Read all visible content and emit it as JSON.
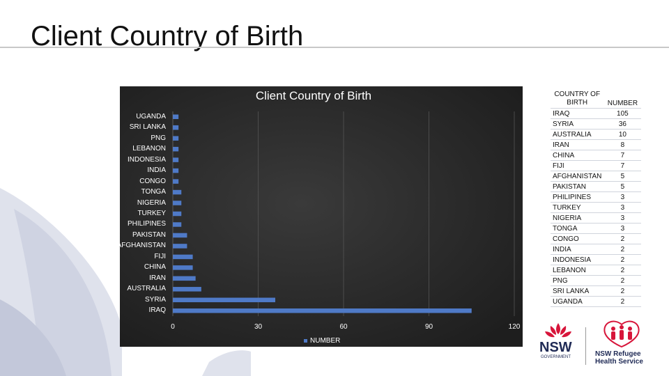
{
  "slide": {
    "title": "Client Country of Birth"
  },
  "chart_data": {
    "type": "bar",
    "orientation": "horizontal",
    "title": "Client Country of Birth",
    "categories": [
      "UGANDA",
      "SRI LANKA",
      "PNG",
      "LEBANON",
      "INDONESIA",
      "INDIA",
      "CONGO",
      "TONGA",
      "NIGERIA",
      "TURKEY",
      "PHILIPINES",
      "PAKISTAN",
      "AFGHANISTAN",
      "FIJI",
      "CHINA",
      "IRAN",
      "AUSTRALIA",
      "SYRIA",
      "IRAQ"
    ],
    "series": [
      {
        "name": "NUMBER",
        "values": [
          2,
          2,
          2,
          2,
          2,
          2,
          2,
          3,
          3,
          3,
          3,
          5,
          5,
          7,
          7,
          8,
          10,
          36,
          105
        ]
      }
    ],
    "xlim": [
      0,
      120
    ],
    "xticks": [
      0,
      30,
      60,
      90,
      120
    ],
    "grid": true,
    "legend": "bottom",
    "colors": {
      "bar": "#4f7ac7",
      "background": "#2b2b2b",
      "gridline": "#555555"
    }
  },
  "table": {
    "headers": [
      "COUNTRY OF BIRTH",
      "NUMBER"
    ],
    "rows": [
      [
        "IRAQ",
        "105"
      ],
      [
        "SYRIA",
        "36"
      ],
      [
        "AUSTRALIA",
        "10"
      ],
      [
        "IRAN",
        "8"
      ],
      [
        "CHINA",
        "7"
      ],
      [
        "FIJI",
        "7"
      ],
      [
        "AFGHANISTAN",
        "5"
      ],
      [
        "PAKISTAN",
        "5"
      ],
      [
        "PHILIPINES",
        "3"
      ],
      [
        "TURKEY",
        "3"
      ],
      [
        "NIGERIA",
        "3"
      ],
      [
        "TONGA",
        "3"
      ],
      [
        "CONGO",
        "2"
      ],
      [
        "INDIA",
        "2"
      ],
      [
        "INDONESIA",
        "2"
      ],
      [
        "LEBANON",
        "2"
      ],
      [
        "PNG",
        "2"
      ],
      [
        "SRI LANKA",
        "2"
      ],
      [
        "UGANDA",
        "2"
      ]
    ]
  },
  "logos": {
    "nsw": {
      "name": "NSW",
      "sub": "GOVERNMENT",
      "color": "#d7153a"
    },
    "refugee": {
      "line1": "NSW Refugee",
      "line2": "Health Service",
      "color": "#d7153a"
    }
  }
}
